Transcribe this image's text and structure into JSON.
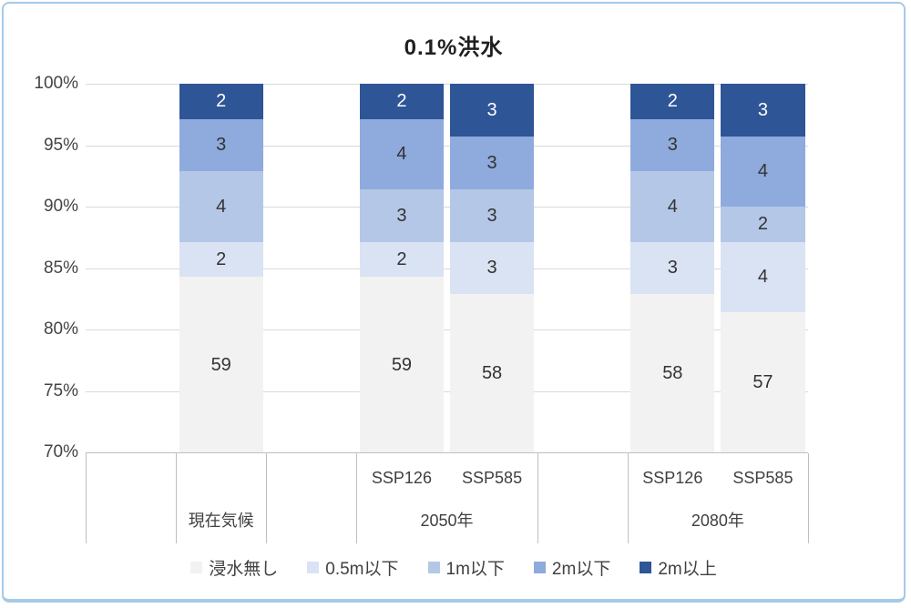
{
  "title": "0.1%洪水",
  "colors": {
    "frame_border": "#a6c9e8",
    "gridline": "#d9d9d9",
    "axis_line": "#bfbfbf",
    "text": "#404040"
  },
  "chart_data": {
    "type": "bar",
    "stacking": "percent",
    "title": "0.1%洪水",
    "total_per_bar": 70,
    "categories": [
      "現在気候",
      "2050年 SSP126",
      "2050年 SSP585",
      "2080年 SSP126",
      "2080年 SSP585"
    ],
    "series": [
      {
        "name": "浸水無し",
        "color": "#f2f2f2",
        "label_color": "#333333",
        "values": [
          59,
          59,
          58,
          58,
          57
        ]
      },
      {
        "name": "0.5m以下",
        "color": "#dae3f3",
        "label_color": "#333333",
        "values": [
          2,
          2,
          3,
          3,
          4
        ]
      },
      {
        "name": "1m以下",
        "color": "#b4c7e7",
        "label_color": "#333333",
        "values": [
          4,
          3,
          3,
          4,
          2
        ]
      },
      {
        "name": "2m以下",
        "color": "#8faadc",
        "label_color": "#333333",
        "values": [
          3,
          4,
          3,
          3,
          4
        ]
      },
      {
        "name": "2m以上",
        "color": "#2e5596",
        "label_color": "#ffffff",
        "values": [
          2,
          2,
          3,
          2,
          3
        ]
      }
    ],
    "y_axis": {
      "min": 70,
      "max": 100,
      "step": 5,
      "unit": "%",
      "tick_labels": [
        "100%",
        "95%",
        "90%",
        "85%",
        "80%",
        "75%",
        "70%"
      ]
    },
    "grid": "horizontal",
    "legend_position": "bottom",
    "legend_labels": [
      "浸水無し",
      "0.5m以下",
      "1m以下",
      "2m以下",
      "2m以上"
    ],
    "x_axis": {
      "slot_count": 8,
      "bar_slots": [
        1,
        3,
        4,
        6,
        7
      ],
      "cell_boundaries": [
        0,
        1,
        2,
        3,
        5,
        6,
        8
      ],
      "sub_labels": [
        {
          "text": "SSP126",
          "slot": 3
        },
        {
          "text": "SSP585",
          "slot": 4
        },
        {
          "text": "SSP126",
          "slot": 6
        },
        {
          "text": "SSP585",
          "slot": 7
        }
      ],
      "group_labels": [
        {
          "text": "現在気候",
          "from": 1,
          "to": 2
        },
        {
          "text": "2050年",
          "from": 3,
          "to": 5
        },
        {
          "text": "2080年",
          "from": 6,
          "to": 8
        }
      ]
    }
  }
}
